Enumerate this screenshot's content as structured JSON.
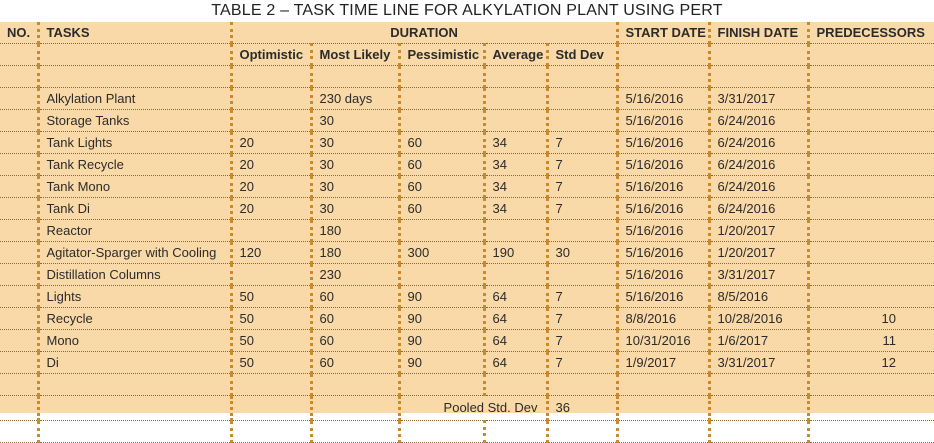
{
  "title": "TABLE 2 – TASK TIME LINE FOR ALKYLATION PLANT USING PERT",
  "headers": {
    "no": "NO.",
    "tasks": "TASKS",
    "duration": "DURATION",
    "start": "START DATE",
    "finish": "FINISH DATE",
    "predecessors": "PREDECESSORS",
    "optimistic": "Optimistic",
    "most_likely": "Most Likely",
    "pessimistic": "Pessimistic",
    "average": "Average",
    "std_dev": "Std Dev"
  },
  "rows": [
    {
      "no": "",
      "task": "Alkylation Plant",
      "opt": "",
      "ml": "230 days",
      "pes": "",
      "avg": "",
      "sd": "",
      "start": "5/16/2016",
      "finish": "3/31/2017",
      "pred": ""
    },
    {
      "no": "",
      "task": "Storage Tanks",
      "opt": "",
      "ml": "30",
      "pes": "",
      "avg": "",
      "sd": "",
      "start": "5/16/2016",
      "finish": "6/24/2016",
      "pred": ""
    },
    {
      "no": "",
      "task": "Tank Lights",
      "opt": "20",
      "ml": "30",
      "pes": "60",
      "avg": "34",
      "sd": "7",
      "start": "5/16/2016",
      "finish": "6/24/2016",
      "pred": ""
    },
    {
      "no": "",
      "task": "Tank Recycle",
      "opt": "20",
      "ml": "30",
      "pes": "60",
      "avg": "34",
      "sd": "7",
      "start": "5/16/2016",
      "finish": "6/24/2016",
      "pred": ""
    },
    {
      "no": "",
      "task": "Tank Mono",
      "opt": "20",
      "ml": "30",
      "pes": "60",
      "avg": "34",
      "sd": "7",
      "start": "5/16/2016",
      "finish": "6/24/2016",
      "pred": ""
    },
    {
      "no": "",
      "task": "Tank Di",
      "opt": "20",
      "ml": "30",
      "pes": "60",
      "avg": "34",
      "sd": "7",
      "start": "5/16/2016",
      "finish": "6/24/2016",
      "pred": ""
    },
    {
      "no": "",
      "task": "Reactor",
      "opt": "",
      "ml": "180",
      "pes": "",
      "avg": "",
      "sd": "",
      "start": "5/16/2016",
      "finish": "1/20/2017",
      "pred": ""
    },
    {
      "no": "",
      "task": "Agitator-Sparger with Cooling",
      "opt": "120",
      "ml": "180",
      "pes": "300",
      "avg": "190",
      "sd": "30",
      "start": "5/16/2016",
      "finish": "1/20/2017",
      "pred": ""
    },
    {
      "no": "",
      "task": "Distillation Columns",
      "opt": "",
      "ml": "230",
      "pes": "",
      "avg": "",
      "sd": "",
      "start": "5/16/2016",
      "finish": "3/31/2017",
      "pred": ""
    },
    {
      "no": "",
      "task": "Lights",
      "opt": "50",
      "ml": "60",
      "pes": "90",
      "avg": "64",
      "sd": "7",
      "start": "5/16/2016",
      "finish": "8/5/2016",
      "pred": ""
    },
    {
      "no": "",
      "task": "Recycle",
      "opt": "50",
      "ml": "60",
      "pes": "90",
      "avg": "64",
      "sd": "7",
      "start": "8/8/2016",
      "finish": "10/28/2016",
      "pred": "10"
    },
    {
      "no": "",
      "task": "Mono",
      "opt": "50",
      "ml": "60",
      "pes": "90",
      "avg": "64",
      "sd": "7",
      "start": "10/31/2016",
      "finish": "1/6/2017",
      "pred": "11"
    },
    {
      "no": "",
      "task": "Di",
      "opt": "50",
      "ml": "60",
      "pes": "90",
      "avg": "64",
      "sd": "7",
      "start": "1/9/2017",
      "finish": "3/31/2017",
      "pred": "12"
    }
  ],
  "pooled": {
    "label": "Pooled Std. Dev",
    "value": "36"
  }
}
